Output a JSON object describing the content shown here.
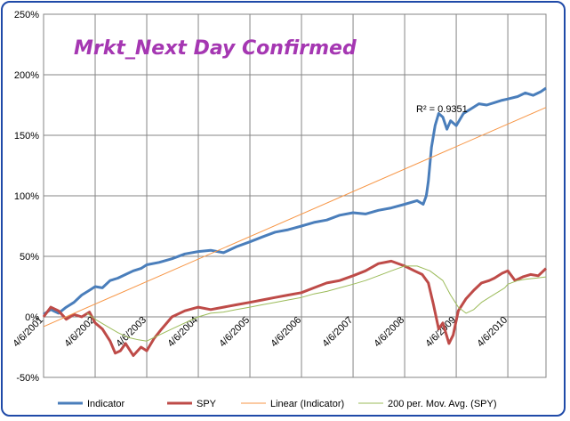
{
  "chart_data": {
    "type": "line",
    "title": "Mrkt_Next Day Confirmed",
    "xlabel": "",
    "ylabel": "",
    "ylim": [
      -50,
      250
    ],
    "y_ticks": [
      "250%",
      "200%",
      "150%",
      "100%",
      "50%",
      "0%",
      "-50%"
    ],
    "y_tick_values": [
      250,
      200,
      150,
      100,
      50,
      0,
      -50
    ],
    "x_ticks": [
      "4/6/2001",
      "4/6/2002",
      "4/6/2003",
      "4/6/2004",
      "4/6/2005",
      "4/6/2006",
      "4/6/2007",
      "4/6/2008",
      "4/6/2009",
      "4/6/2010"
    ],
    "x_tick_values": [
      2001.26,
      2002.26,
      2003.26,
      2004.26,
      2005.26,
      2006.26,
      2007.26,
      2008.26,
      2009.26,
      2010.26
    ],
    "xlim": [
      2001.26,
      2011.0
    ],
    "annotation": "R² = 0.9351",
    "legend": [
      "Indicator",
      "SPY",
      "Linear (Indicator)",
      "200 per. Mov. Avg. (SPY)"
    ],
    "series": [
      {
        "name": "Indicator",
        "color": "#4a7ebb",
        "x": [
          2001.26,
          2001.4,
          2001.55,
          2001.7,
          2001.85,
          2002.0,
          2002.15,
          2002.26,
          2002.4,
          2002.55,
          2002.7,
          2002.85,
          2003.0,
          2003.15,
          2003.26,
          2003.5,
          2003.75,
          2004.0,
          2004.26,
          2004.5,
          2004.75,
          2005.0,
          2005.26,
          2005.5,
          2005.75,
          2006.0,
          2006.26,
          2006.5,
          2006.75,
          2007.0,
          2007.26,
          2007.5,
          2007.75,
          2008.0,
          2008.26,
          2008.5,
          2008.62,
          2008.68,
          2008.72,
          2008.78,
          2008.85,
          2008.92,
          2009.0,
          2009.08,
          2009.15,
          2009.26,
          2009.4,
          2009.55,
          2009.7,
          2009.85,
          2010.0,
          2010.15,
          2010.26,
          2010.45,
          2010.6,
          2010.75,
          2010.9,
          2011.0
        ],
        "values": [
          2,
          6,
          3,
          8,
          12,
          18,
          22,
          25,
          24,
          30,
          32,
          35,
          38,
          40,
          43,
          45,
          48,
          52,
          54,
          55,
          53,
          58,
          62,
          66,
          70,
          72,
          75,
          78,
          80,
          84,
          86,
          85,
          88,
          90,
          93,
          96,
          93,
          100,
          112,
          140,
          158,
          168,
          165,
          155,
          162,
          158,
          168,
          172,
          176,
          175,
          177,
          179,
          180,
          182,
          185,
          183,
          186,
          189
        ]
      },
      {
        "name": "SPY",
        "color": "#be4b48",
        "x": [
          2001.26,
          2001.4,
          2001.55,
          2001.7,
          2001.85,
          2002.0,
          2002.15,
          2002.26,
          2002.4,
          2002.55,
          2002.65,
          2002.75,
          2002.85,
          2003.0,
          2003.15,
          2003.26,
          2003.4,
          2003.55,
          2003.75,
          2004.0,
          2004.26,
          2004.5,
          2004.75,
          2005.0,
          2005.26,
          2005.5,
          2005.75,
          2006.0,
          2006.26,
          2006.5,
          2006.75,
          2007.0,
          2007.26,
          2007.5,
          2007.75,
          2008.0,
          2008.26,
          2008.45,
          2008.6,
          2008.72,
          2008.82,
          2008.92,
          2009.0,
          2009.12,
          2009.2,
          2009.3,
          2009.45,
          2009.6,
          2009.75,
          2009.9,
          2010.0,
          2010.15,
          2010.26,
          2010.4,
          2010.55,
          2010.7,
          2010.85,
          2011.0
        ],
        "values": [
          0,
          8,
          5,
          -2,
          2,
          0,
          4,
          -5,
          -10,
          -20,
          -30,
          -28,
          -22,
          -32,
          -25,
          -28,
          -18,
          -10,
          0,
          5,
          8,
          6,
          8,
          10,
          12,
          14,
          16,
          18,
          20,
          24,
          28,
          30,
          34,
          38,
          44,
          46,
          42,
          38,
          35,
          28,
          10,
          -10,
          -5,
          -22,
          -15,
          5,
          15,
          22,
          28,
          30,
          32,
          36,
          38,
          30,
          33,
          35,
          34,
          40
        ]
      },
      {
        "name": "Linear (Indicator)",
        "color": "#f79646",
        "x": [
          2001.26,
          2011.0
        ],
        "values": [
          -8,
          173
        ]
      },
      {
        "name": "200 per. Mov. Avg. (SPY)",
        "color": "#9bbb59",
        "x": [
          2002.1,
          2002.3,
          2002.5,
          2002.7,
          2002.9,
          2003.1,
          2003.26,
          2003.5,
          2003.75,
          2004.0,
          2004.26,
          2004.5,
          2004.75,
          2005.0,
          2005.26,
          2005.5,
          2005.75,
          2006.0,
          2006.26,
          2006.5,
          2006.75,
          2007.0,
          2007.26,
          2007.5,
          2007.75,
          2008.0,
          2008.26,
          2008.5,
          2008.75,
          2009.0,
          2009.15,
          2009.3,
          2009.45,
          2009.6,
          2009.75,
          2009.9,
          2010.05,
          2010.2,
          2010.26,
          2010.45,
          2010.6,
          2010.8,
          2011.0
        ],
        "values": [
          3,
          -3,
          -8,
          -13,
          -17,
          -19,
          -20,
          -15,
          -10,
          -5,
          0,
          3,
          4,
          6,
          8,
          10,
          12,
          14,
          16,
          19,
          21,
          24,
          27,
          30,
          34,
          38,
          42,
          42,
          38,
          30,
          18,
          8,
          3,
          6,
          12,
          16,
          20,
          24,
          27,
          30,
          31,
          32,
          33
        ]
      }
    ]
  }
}
